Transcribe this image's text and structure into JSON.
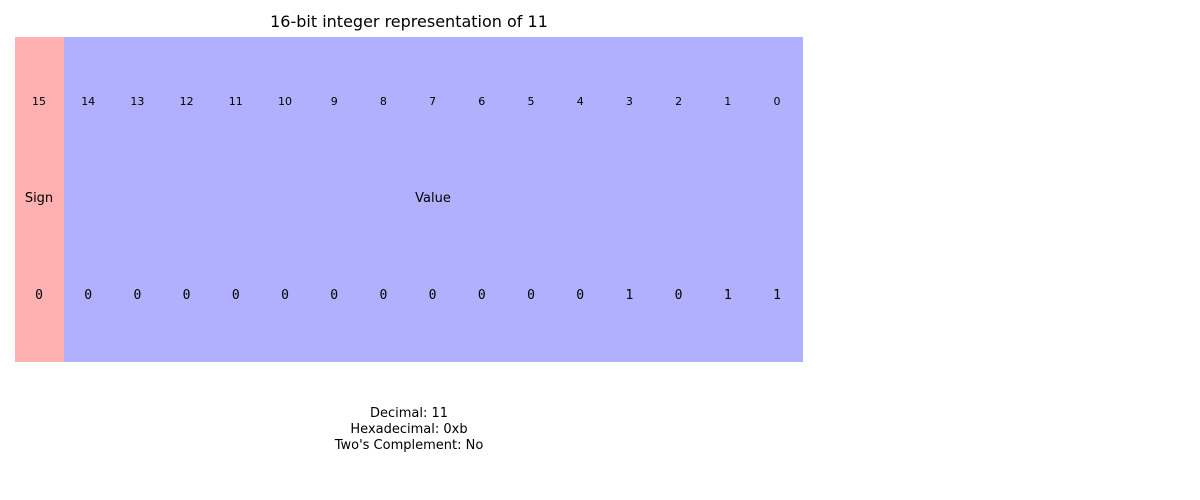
{
  "title": "16-bit integer representation of 11",
  "colors": {
    "sign": "#ffb0b0",
    "value": "#b0b0ff"
  },
  "bits": [
    {
      "index": "15",
      "value": "0"
    },
    {
      "index": "14",
      "value": "0"
    },
    {
      "index": "13",
      "value": "0"
    },
    {
      "index": "12",
      "value": "0"
    },
    {
      "index": "11",
      "value": "0"
    },
    {
      "index": "10",
      "value": "0"
    },
    {
      "index": "9",
      "value": "0"
    },
    {
      "index": "8",
      "value": "0"
    },
    {
      "index": "7",
      "value": "0"
    },
    {
      "index": "6",
      "value": "0"
    },
    {
      "index": "5",
      "value": "0"
    },
    {
      "index": "4",
      "value": "0"
    },
    {
      "index": "3",
      "value": "1"
    },
    {
      "index": "2",
      "value": "0"
    },
    {
      "index": "1",
      "value": "1"
    },
    {
      "index": "0",
      "value": "1"
    }
  ],
  "labels": {
    "sign": "Sign",
    "value": "Value"
  },
  "info": {
    "decimal": "Decimal: 11",
    "hexadecimal": "Hexadecimal: 0xb",
    "twos_complement": "Two's Complement: No"
  }
}
